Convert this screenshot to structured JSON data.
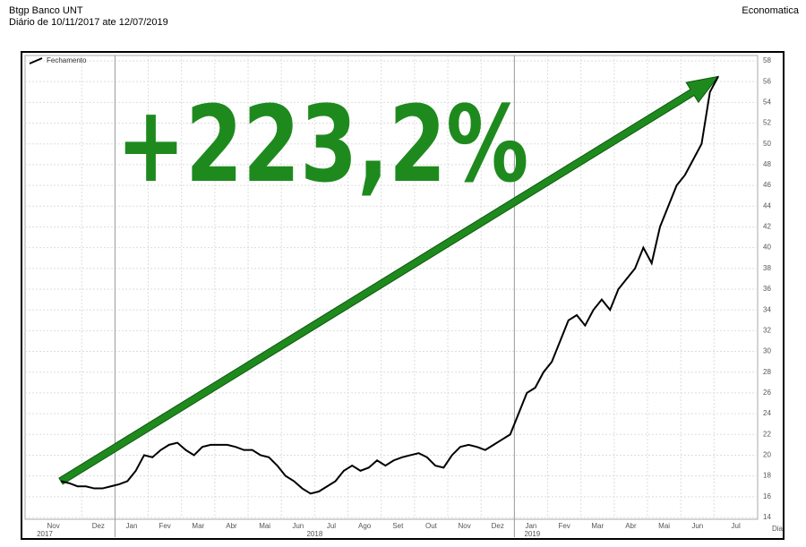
{
  "chart_data": {
    "type": "line",
    "title": "Btgp Banco UNT",
    "subtitle": "Diário de 10/11/2017 ate 12/07/2019",
    "source": "Economatica",
    "annotation": "+223,2%",
    "x_axis_label": "Dia",
    "years": [
      "2017",
      "2018",
      "2019"
    ],
    "categories": [
      "Nov",
      null,
      null,
      "Dez",
      null,
      null,
      null,
      "Jan",
      null,
      null,
      null,
      "Fev",
      null,
      null,
      null,
      "Mar",
      null,
      null,
      null,
      "Abr",
      null,
      null,
      null,
      "Mai",
      null,
      null,
      null,
      "Jun",
      null,
      null,
      null,
      "Jul",
      null,
      null,
      null,
      "Ago",
      null,
      null,
      null,
      "Set",
      null,
      null,
      null,
      "Out",
      null,
      null,
      null,
      "Nov",
      null,
      null,
      null,
      "Dez",
      null,
      null,
      null,
      "Jan",
      null,
      null,
      null,
      "Fev",
      null,
      null,
      null,
      "Mar",
      null,
      null,
      null,
      "Abr",
      null,
      null,
      null,
      "Mai",
      null,
      null,
      null,
      "Jun",
      null,
      null,
      null,
      "Jul"
    ],
    "series": [
      {
        "name": "Fechamento",
        "color": "#000000",
        "values": [
          17.5,
          17.3,
          17.0,
          17.0,
          16.8,
          16.8,
          17.0,
          17.2,
          17.5,
          18.5,
          20.0,
          19.8,
          20.5,
          21.0,
          21.2,
          20.5,
          20.0,
          20.8,
          21.0,
          21.0,
          21.0,
          20.8,
          20.5,
          20.5,
          20.0,
          19.8,
          19.0,
          18.0,
          17.5,
          16.8,
          16.3,
          16.5,
          17.0,
          17.5,
          18.5,
          19.0,
          18.5,
          18.8,
          19.5,
          19.0,
          19.5,
          19.8,
          20.0,
          20.2,
          19.8,
          19.0,
          18.8,
          20.0,
          20.8,
          21.0,
          20.8,
          20.5,
          21.0,
          21.5,
          22.0,
          24.0,
          26.0,
          26.5,
          28.0,
          29.0,
          31.0,
          33.0,
          33.5,
          32.5,
          34.0,
          35.0,
          34.0,
          36.0,
          37.0,
          38.0,
          40.0,
          38.5,
          42.0,
          44.0,
          46.0,
          47.0,
          48.5,
          50.0,
          55.0,
          56.5
        ]
      }
    ],
    "ylim": [
      14,
      58
    ],
    "yticks": [
      14,
      16,
      18,
      20,
      22,
      24,
      26,
      28,
      30,
      32,
      34,
      36,
      38,
      40,
      42,
      44,
      46,
      48,
      50,
      52,
      54,
      56,
      58
    ],
    "grid": true,
    "annotation_color": "#1e8a1e"
  }
}
